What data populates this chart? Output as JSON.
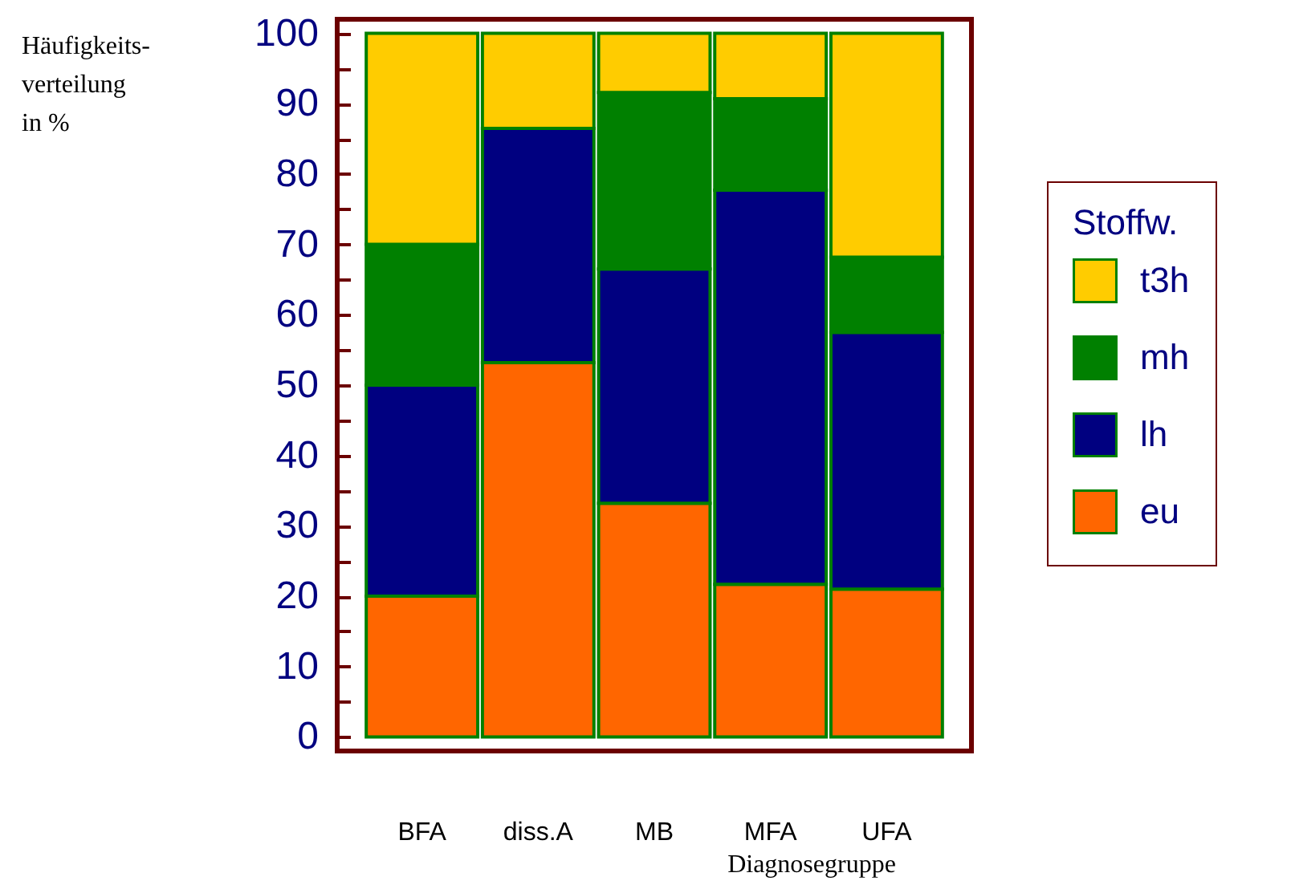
{
  "chart_data": {
    "type": "bar",
    "stacked": true,
    "categories": [
      "BFA",
      "diss.A",
      "MB",
      "MFA",
      "UFA"
    ],
    "series": [
      {
        "name": "eu",
        "color": "#ff6600",
        "values": [
          20,
          53.2,
          33.2,
          21.7,
          21.0
        ]
      },
      {
        "name": "lh",
        "color": "#000080",
        "values": [
          30,
          33.3,
          33.3,
          56.0,
          36.5
        ]
      },
      {
        "name": "mh",
        "color": "#008000",
        "values": [
          20,
          0,
          25.1,
          13.0,
          10.7
        ]
      },
      {
        "name": "t3h",
        "color": "#ffcc00",
        "values": [
          30,
          13.5,
          8.4,
          9.3,
          31.8
        ]
      }
    ],
    "ylabel": "Häufigkeits-\nverteilung\nin %",
    "xlabel": "Diagnosegruppe",
    "legend_title": "Stoffw.",
    "ylim": [
      -2,
      102
    ],
    "yticks": [
      0,
      {
        "value": 5,
        "label": null
      },
      10,
      {
        "value": 15,
        "label": null
      },
      20,
      {
        "value": 25,
        "label": null
      },
      30,
      {
        "value": 35,
        "label": null
      },
      40,
      {
        "value": 45,
        "label": null
      },
      50,
      {
        "value": 55,
        "label": null
      },
      60,
      {
        "value": 65,
        "label": null
      },
      70,
      {
        "value": 75,
        "label": null
      },
      80,
      {
        "value": 85,
        "label": null
      },
      90,
      {
        "value": 95,
        "label": null
      },
      100
    ],
    "legend": "right",
    "grid": false
  }
}
